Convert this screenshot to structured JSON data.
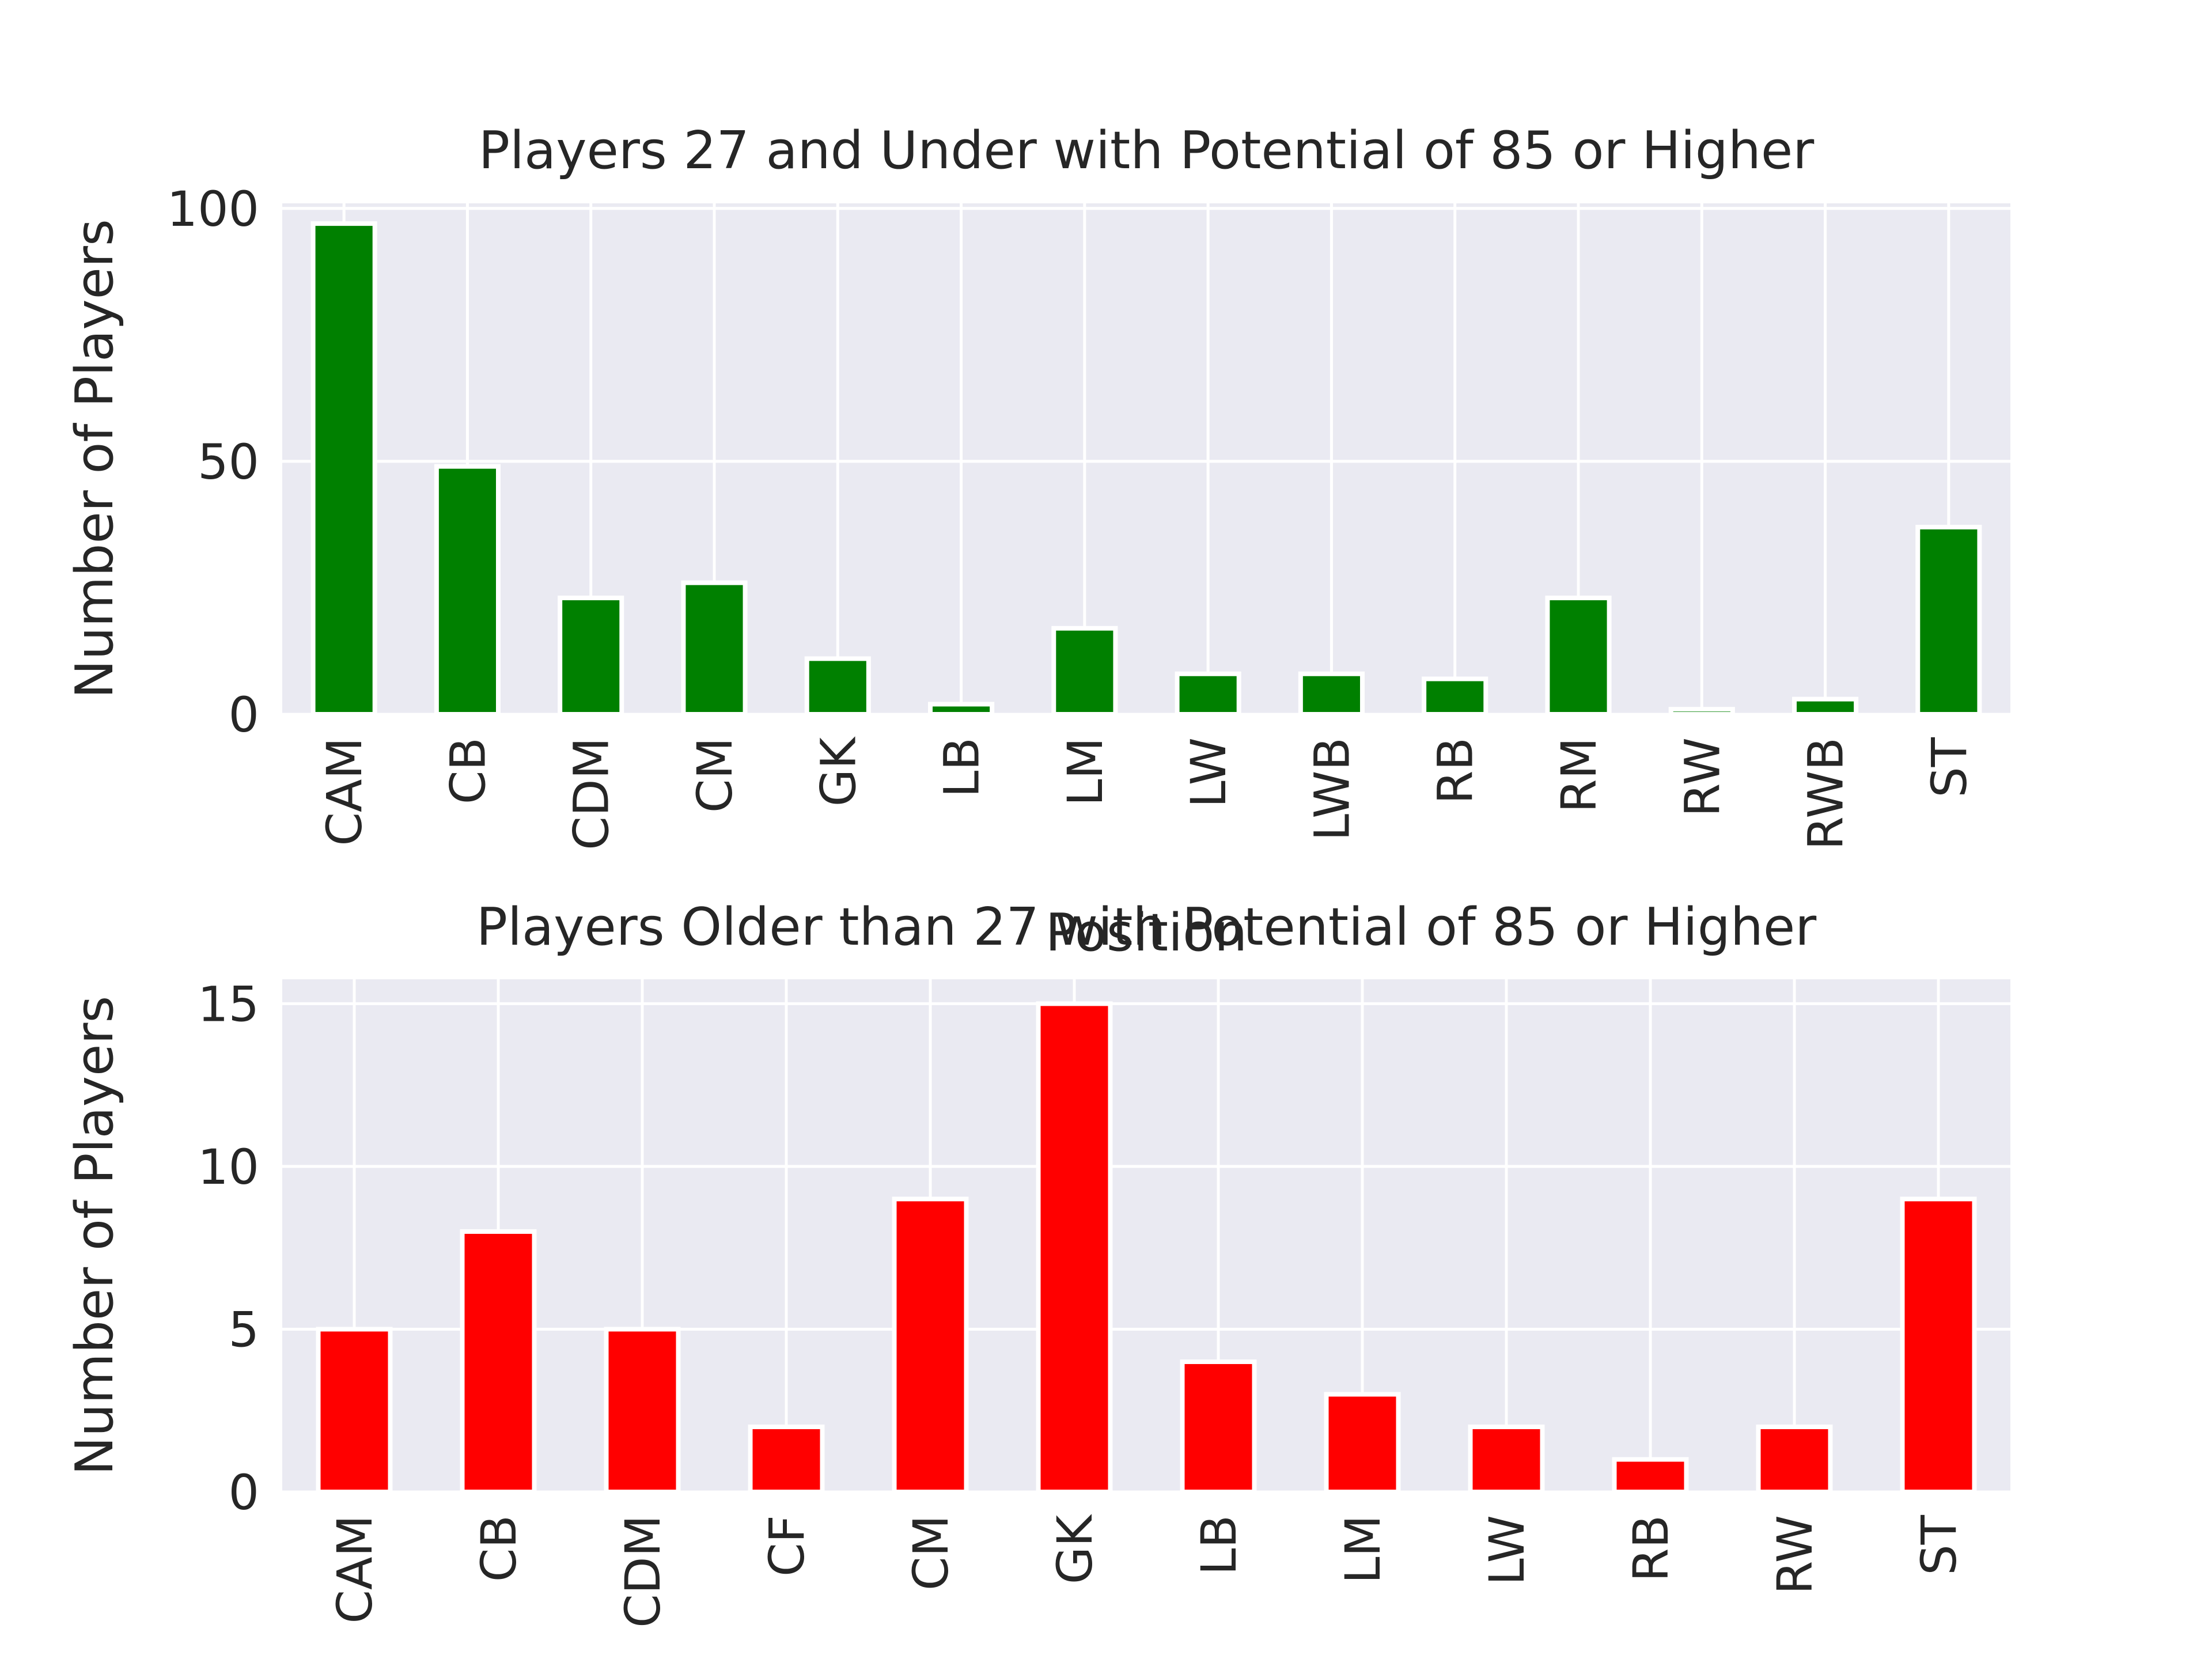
{
  "chart_data": [
    {
      "type": "bar",
      "title": "Players 27 and Under with Potential of 85 or Higher",
      "xlabel": "Position",
      "ylabel": "Number of Players",
      "categories": [
        "CAM",
        "CB",
        "CDM",
        "CM",
        "GK",
        "LB",
        "LM",
        "LW",
        "LWB",
        "RB",
        "RM",
        "RW",
        "RWB",
        "ST"
      ],
      "values": [
        97,
        49,
        23,
        26,
        11,
        2,
        17,
        8,
        8,
        7,
        23,
        1,
        3,
        37
      ],
      "ylim": [
        0,
        101
      ],
      "yticks": [
        0,
        50,
        100
      ],
      "color": "#008000",
      "grid": true
    },
    {
      "type": "bar",
      "title": "Players Older than 27 with Potential of 85 or Higher",
      "xlabel": "",
      "ylabel": "Number of Players",
      "categories": [
        "CAM",
        "CB",
        "CDM",
        "CF",
        "CM",
        "GK",
        "LB",
        "LM",
        "LW",
        "RB",
        "RW",
        "ST"
      ],
      "values": [
        5,
        8,
        5,
        2,
        9,
        15,
        4,
        3,
        2,
        1,
        2,
        9
      ],
      "ylim": [
        0,
        15.75
      ],
      "yticks": [
        0,
        5,
        10,
        15
      ],
      "color": "#ff0000",
      "grid": true
    }
  ],
  "colors": {
    "background": "#eaeaf2",
    "grid": "#ffffff",
    "text": "#262626"
  }
}
